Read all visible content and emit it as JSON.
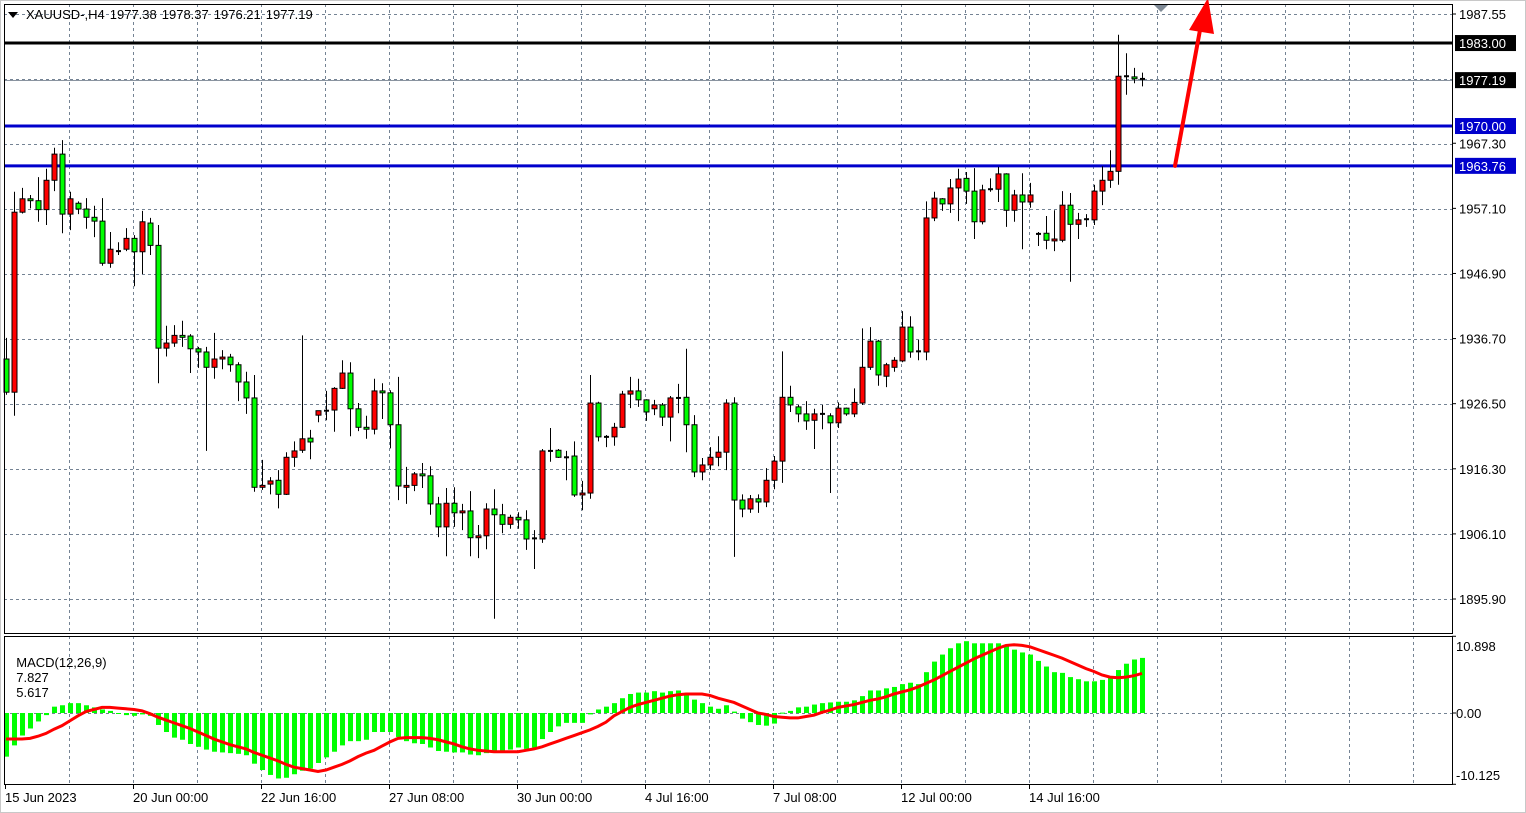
{
  "header": {
    "symbol": "XAUUSD-,H4",
    "open": "1977.38",
    "high": "1978.37",
    "low": "1976.21",
    "close": "1977.19"
  },
  "macd_label": {
    "name": "MACD(12,26,9)",
    "main": "7.827",
    "signal": "5.617"
  },
  "colors": {
    "bull": "#ff0000",
    "bear": "#00ff00",
    "resistance": "#000000",
    "support": "#0000cc",
    "signal": "#ff0000",
    "histogram": "#00ff00",
    "arrow": "#ff0000",
    "grid": "#748394"
  },
  "chart_data": [
    {
      "type": "candlestick",
      "title": "XAUUSD-,H4",
      "timeframe": "H4",
      "ylim": [
        1892.0,
        1989.3
      ],
      "grid": true,
      "price_ticks": [
        "1987.55",
        "1967.30",
        "1957.10",
        "1946.90",
        "1936.70",
        "1926.50",
        "1916.30",
        "1906.10",
        "1895.90"
      ],
      "price_tick_values": [
        1987.55,
        1967.3,
        1957.1,
        1946.9,
        1936.7,
        1926.5,
        1916.3,
        1906.1,
        1895.9
      ],
      "date_labels": [
        "15 Jun 2023",
        "20 Jun 00:00",
        "22 Jun 16:00",
        "27 Jun 08:00",
        "30 Jun 00:00",
        "4 Jul 16:00",
        "7 Jul 08:00",
        "12 Jul 00:00",
        "14 Jul 16:00"
      ],
      "date_label_bar_index": [
        0,
        16,
        32,
        48,
        64,
        80,
        96,
        112,
        128
      ],
      "horizontal_levels": [
        {
          "price": 1983.0,
          "label": "1983.00",
          "color": "#000000"
        },
        {
          "price": 1970.0,
          "label": "1970.00",
          "color": "#0000cc"
        },
        {
          "price": 1963.76,
          "label": "1963.76",
          "color": "#0000cc"
        }
      ],
      "current_price": {
        "price": 1977.19,
        "label": "1977.19"
      },
      "arrow": {
        "direction": "up",
        "from_price": 1963.76,
        "to_price": 1989.3,
        "color": "#ff0000"
      },
      "ohlc": [
        [
          1933.5,
          1936.8,
          1927.9,
          1928.3
        ],
        [
          1928.3,
          1959.7,
          1924.6,
          1956.5
        ],
        [
          1956.5,
          1960.3,
          1956.3,
          1958.6
        ],
        [
          1958.6,
          1959.2,
          1957.1,
          1958.3
        ],
        [
          1958.3,
          1962.0,
          1955.0,
          1956.9
        ],
        [
          1956.9,
          1963.3,
          1954.5,
          1961.5
        ],
        [
          1961.5,
          1966.6,
          1959.8,
          1965.6
        ],
        [
          1965.6,
          1967.8,
          1953.2,
          1956.2
        ],
        [
          1956.2,
          1959.7,
          1953.7,
          1958.6
        ],
        [
          1957.9,
          1958.2,
          1956.2,
          1957.0
        ],
        [
          1957.0,
          1958.7,
          1953.9,
          1955.7
        ],
        [
          1955.7,
          1957.5,
          1952.6,
          1955.1
        ],
        [
          1955.1,
          1958.7,
          1948.1,
          1948.5
        ],
        [
          1948.5,
          1953.4,
          1947.8,
          1950.7
        ],
        [
          1950.4,
          1951.8,
          1949.8,
          1950.3
        ],
        [
          1950.7,
          1954.0,
          1950.4,
          1952.4
        ],
        [
          1952.4,
          1952.9,
          1944.9,
          1950.3
        ],
        [
          1950.3,
          1956.7,
          1946.8,
          1955.0
        ],
        [
          1954.8,
          1955.6,
          1949.8,
          1951.3
        ],
        [
          1951.3,
          1954.5,
          1929.7,
          1935.2
        ],
        [
          1935.2,
          1938.7,
          1933.9,
          1936.0
        ],
        [
          1936.0,
          1938.8,
          1935.4,
          1937.2
        ],
        [
          1937.2,
          1939.5,
          1935.4,
          1936.9
        ],
        [
          1937.1,
          1937.4,
          1931.3,
          1935.1
        ],
        [
          1935.1,
          1935.4,
          1932.1,
          1934.6
        ],
        [
          1934.6,
          1935.4,
          1919.1,
          1932.2
        ],
        [
          1932.2,
          1937.6,
          1930.4,
          1933.5
        ],
        [
          1933.5,
          1934.9,
          1931.9,
          1933.8
        ],
        [
          1933.8,
          1934.3,
          1931.5,
          1932.6
        ],
        [
          1932.6,
          1933.0,
          1926.9,
          1929.9
        ],
        [
          1929.9,
          1931.5,
          1924.9,
          1927.4
        ],
        [
          1927.4,
          1931.0,
          1912.7,
          1913.4
        ],
        [
          1913.4,
          1917.7,
          1913.0,
          1913.7
        ],
        [
          1913.9,
          1915.0,
          1912.3,
          1914.4
        ],
        [
          1914.5,
          1916.1,
          1910.1,
          1912.3
        ],
        [
          1912.3,
          1918.9,
          1912.2,
          1918.1
        ],
        [
          1918.1,
          1920.6,
          1916.6,
          1919.1
        ],
        [
          1919.2,
          1937.2,
          1918.8,
          1921.0
        ],
        [
          1921.1,
          1922.4,
          1917.8,
          1920.5
        ],
        [
          1924.7,
          1925.4,
          1923.6,
          1925.4
        ],
        [
          1925.4,
          1928.5,
          1923.9,
          1925.3
        ],
        [
          1925.5,
          1929.1,
          1922.1,
          1928.9
        ],
        [
          1928.9,
          1933.3,
          1928.8,
          1931.3
        ],
        [
          1931.3,
          1933.0,
          1921.4,
          1925.7
        ],
        [
          1925.7,
          1926.6,
          1922.2,
          1922.8
        ],
        [
          1922.8,
          1924.6,
          1921.0,
          1922.5
        ],
        [
          1922.5,
          1930.4,
          1921.7,
          1928.5
        ],
        [
          1928.5,
          1929.7,
          1924.1,
          1928.2
        ],
        [
          1928.2,
          1928.6,
          1919.5,
          1923.2
        ],
        [
          1923.2,
          1930.7,
          1911.4,
          1913.6
        ],
        [
          1913.4,
          1916.6,
          1910.8,
          1913.7
        ],
        [
          1913.7,
          1915.8,
          1912.8,
          1915.5
        ],
        [
          1915.5,
          1917.2,
          1913.3,
          1915.2
        ],
        [
          1915.2,
          1916.7,
          1909.1,
          1910.8
        ],
        [
          1910.8,
          1911.9,
          1905.6,
          1907.2
        ],
        [
          1907.2,
          1913.3,
          1902.6,
          1910.9
        ],
        [
          1910.9,
          1913.4,
          1907.2,
          1909.4
        ],
        [
          1909.4,
          1910.8,
          1906.7,
          1909.7
        ],
        [
          1909.7,
          1912.8,
          1902.6,
          1905.5
        ],
        [
          1905.5,
          1907.5,
          1902.3,
          1905.8
        ],
        [
          1905.8,
          1910.9,
          1903.7,
          1910.0
        ],
        [
          1910.0,
          1913.1,
          1892.8,
          1909.1
        ],
        [
          1909.1,
          1910.8,
          1906.2,
          1907.6
        ],
        [
          1907.6,
          1909.1,
          1906.9,
          1908.7
        ],
        [
          1908.7,
          1909.5,
          1906.9,
          1908.3
        ],
        [
          1908.3,
          1909.8,
          1903.6,
          1905.3
        ],
        [
          1905.3,
          1906.7,
          1900.6,
          1905.4
        ],
        [
          1905.3,
          1919.4,
          1904.7,
          1919.1
        ],
        [
          1919.1,
          1922.7,
          1917.4,
          1919.1
        ],
        [
          1919.2,
          1919.4,
          1918.0,
          1918.1
        ],
        [
          1918.1,
          1919.1,
          1914.5,
          1918.0
        ],
        [
          1918.3,
          1920.6,
          1911.9,
          1912.2
        ],
        [
          1912.2,
          1914.4,
          1909.8,
          1912.5
        ],
        [
          1912.5,
          1931.0,
          1911.6,
          1926.6
        ],
        [
          1926.6,
          1926.8,
          1920.6,
          1921.3
        ],
        [
          1921.3,
          1921.6,
          1919.7,
          1921.3
        ],
        [
          1921.3,
          1923.5,
          1919.9,
          1922.8
        ],
        [
          1922.8,
          1928.5,
          1922.7,
          1928.0
        ],
        [
          1928.0,
          1930.7,
          1925.8,
          1928.5
        ],
        [
          1928.5,
          1930.4,
          1926.0,
          1927.1
        ],
        [
          1927.1,
          1927.2,
          1923.8,
          1925.2
        ],
        [
          1925.7,
          1927.1,
          1924.7,
          1926.3
        ],
        [
          1926.3,
          1926.6,
          1923.0,
          1924.4
        ],
        [
          1924.4,
          1927.7,
          1920.6,
          1927.4
        ],
        [
          1927.4,
          1929.6,
          1925.0,
          1927.3
        ],
        [
          1927.5,
          1935.1,
          1918.9,
          1923.2
        ],
        [
          1923.2,
          1924.7,
          1915.0,
          1915.8
        ],
        [
          1915.8,
          1918.0,
          1914.5,
          1916.9
        ],
        [
          1916.9,
          1919.7,
          1916.1,
          1918.1
        ],
        [
          1918.1,
          1921.4,
          1916.7,
          1918.9
        ],
        [
          1918.9,
          1927.2,
          1916.1,
          1926.6
        ],
        [
          1926.6,
          1927.5,
          1902.5,
          1911.4
        ],
        [
          1911.4,
          1912.3,
          1908.7,
          1910.0
        ],
        [
          1910.0,
          1912.2,
          1909.4,
          1911.6
        ],
        [
          1911.6,
          1912.3,
          1909.4,
          1911.1
        ],
        [
          1911.1,
          1916.4,
          1910.3,
          1914.5
        ],
        [
          1914.5,
          1918.3,
          1913.1,
          1917.5
        ],
        [
          1917.5,
          1934.7,
          1914.1,
          1927.5
        ],
        [
          1927.5,
          1929.3,
          1925.2,
          1926.3
        ],
        [
          1926.0,
          1926.3,
          1923.6,
          1924.9
        ],
        [
          1924.9,
          1926.9,
          1922.4,
          1923.8
        ],
        [
          1923.9,
          1925.7,
          1919.4,
          1924.9
        ],
        [
          1924.9,
          1926.3,
          1922.5,
          1924.7
        ],
        [
          1924.6,
          1925.0,
          1912.5,
          1923.5
        ],
        [
          1923.5,
          1926.7,
          1922.7,
          1925.8
        ],
        [
          1925.8,
          1925.9,
          1924.6,
          1924.9
        ],
        [
          1924.9,
          1928.9,
          1924.4,
          1926.7
        ],
        [
          1926.6,
          1938.3,
          1926.3,
          1932.2
        ],
        [
          1932.2,
          1938.5,
          1931.8,
          1936.3
        ],
        [
          1936.3,
          1936.5,
          1929.3,
          1931.0
        ],
        [
          1930.8,
          1932.9,
          1929.1,
          1932.6
        ],
        [
          1932.2,
          1933.8,
          1931.5,
          1933.3
        ],
        [
          1933.2,
          1941.0,
          1933.0,
          1938.5
        ],
        [
          1938.5,
          1940.2,
          1933.7,
          1934.6
        ],
        [
          1934.6,
          1936.5,
          1933.3,
          1934.7
        ],
        [
          1934.6,
          1958.2,
          1933.3,
          1955.6
        ],
        [
          1955.6,
          1959.7,
          1955.1,
          1958.7
        ],
        [
          1958.6,
          1958.7,
          1956.7,
          1957.8
        ],
        [
          1957.8,
          1961.7,
          1956.4,
          1960.3
        ],
        [
          1960.3,
          1963.3,
          1955.1,
          1961.7
        ],
        [
          1961.8,
          1962.8,
          1957.8,
          1959.8
        ],
        [
          1959.8,
          1963.4,
          1952.3,
          1955.0
        ],
        [
          1955.0,
          1960.8,
          1954.6,
          1960.0
        ],
        [
          1960.0,
          1961.8,
          1959.7,
          1960.1
        ],
        [
          1960.1,
          1963.6,
          1958.1,
          1962.5
        ],
        [
          1962.5,
          1962.6,
          1954.2,
          1956.8
        ],
        [
          1956.8,
          1960.0,
          1955.0,
          1959.2
        ],
        [
          1959.2,
          1962.6,
          1950.7,
          1958.1
        ],
        [
          1958.1,
          1961.1,
          1957.2,
          1959.2
        ],
        [
          1953.1,
          1953.4,
          1951.2,
          1953.0
        ],
        [
          1953.2,
          1955.9,
          1950.7,
          1952.1
        ],
        [
          1952.0,
          1956.8,
          1950.4,
          1952.3
        ],
        [
          1952.1,
          1959.8,
          1951.8,
          1957.6
        ],
        [
          1957.6,
          1959.5,
          1945.6,
          1954.6
        ],
        [
          1954.6,
          1956.4,
          1952.3,
          1955.3
        ],
        [
          1955.3,
          1956.2,
          1954.2,
          1955.4
        ],
        [
          1955.3,
          1960.8,
          1954.5,
          1959.8
        ],
        [
          1959.8,
          1963.7,
          1957.6,
          1961.5
        ],
        [
          1961.5,
          1966.2,
          1960.3,
          1962.9
        ],
        [
          1962.9,
          1984.3,
          1960.8,
          1977.8
        ],
        [
          1977.8,
          1981.4,
          1974.9,
          1977.7
        ],
        [
          1977.7,
          1979.1,
          1976.7,
          1977.4
        ],
        [
          1977.38,
          1978.37,
          1976.21,
          1977.19
        ]
      ]
    },
    {
      "type": "bar+line",
      "title": "MACD(12,26,9)",
      "ylim": [
        -10.125,
        10.898
      ],
      "y_ticks": [
        "10.898",
        "0.00",
        "-10.125"
      ],
      "y_tick_values": [
        10.898,
        0,
        -10.125
      ],
      "histogram": [
        -6.2,
        -4.6,
        -3.2,
        -2.2,
        -1.2,
        -0.3,
        0.9,
        1.1,
        1.4,
        1.4,
        1.1,
        0.8,
        0.5,
        0.3,
        -0.1,
        -0.3,
        -0.4,
        -0.2,
        -0.4,
        -1.7,
        -2.7,
        -3.5,
        -3.8,
        -4.4,
        -4.8,
        -5.2,
        -5.5,
        -5.6,
        -5.7,
        -5.8,
        -6.0,
        -7.2,
        -8.1,
        -8.8,
        -9.3,
        -9.2,
        -8.7,
        -8.2,
        -7.9,
        -7.1,
        -6.3,
        -5.5,
        -4.6,
        -4.0,
        -4.0,
        -3.8,
        -2.7,
        -2.7,
        -2.7,
        -3.4,
        -4.0,
        -4.3,
        -4.4,
        -4.9,
        -5.4,
        -5.5,
        -5.6,
        -5.6,
        -5.9,
        -6.0,
        -5.7,
        -5.6,
        -5.5,
        -5.2,
        -4.9,
        -5.1,
        -4.9,
        -3.7,
        -2.7,
        -1.9,
        -1.4,
        -1.4,
        -1.4,
        -0.2,
        0.5,
        0.9,
        1.4,
        2.1,
        2.7,
        2.9,
        2.9,
        3.1,
        2.9,
        3.1,
        3.2,
        2.7,
        1.9,
        1.4,
        0.9,
        0.6,
        1.1,
        0.2,
        -0.8,
        -1.3,
        -1.7,
        -1.8,
        -1.5,
        0.05,
        0.3,
        0.8,
        0.9,
        1.2,
        1.4,
        1.5,
        1.6,
        1.6,
        1.8,
        2.4,
        3.2,
        3.2,
        3.5,
        3.7,
        4.1,
        4.3,
        4.1,
        5.8,
        7.3,
        8.3,
        9.2,
        9.9,
        10.2,
        9.9,
        9.9,
        9.9,
        9.9,
        9.5,
        9.0,
        8.6,
        8.3,
        7.4,
        6.6,
        5.8,
        5.7,
        5.1,
        4.8,
        4.5,
        4.5,
        4.7,
        5.0,
        6.1,
        7.0,
        7.6,
        7.827
      ],
      "signal": [
        -3.7,
        -3.7,
        -3.7,
        -3.6,
        -3.3,
        -2.9,
        -2.3,
        -1.8,
        -1.1,
        -0.4,
        0.2,
        0.5,
        0.8,
        0.8,
        0.7,
        0.6,
        0.5,
        0.3,
        -0.1,
        -0.6,
        -1.0,
        -1.4,
        -1.8,
        -2.2,
        -2.7,
        -3.2,
        -3.7,
        -4.1,
        -4.5,
        -4.8,
        -5.1,
        -5.6,
        -6.0,
        -6.4,
        -6.8,
        -7.3,
        -7.7,
        -7.9,
        -8.1,
        -8.3,
        -8.1,
        -7.7,
        -7.3,
        -6.8,
        -6.2,
        -5.7,
        -5.3,
        -4.7,
        -4.1,
        -3.6,
        -3.5,
        -3.5,
        -3.5,
        -3.6,
        -3.8,
        -4.1,
        -4.4,
        -4.8,
        -5.1,
        -5.3,
        -5.4,
        -5.5,
        -5.5,
        -5.5,
        -5.5,
        -5.3,
        -5.1,
        -4.8,
        -4.4,
        -4.0,
        -3.6,
        -3.2,
        -2.8,
        -2.4,
        -1.9,
        -1.3,
        -0.4,
        0.2,
        0.8,
        1.2,
        1.5,
        1.8,
        2.1,
        2.4,
        2.6,
        2.7,
        2.7,
        2.7,
        2.5,
        2.1,
        1.8,
        1.5,
        1.0,
        0.5,
        0.0,
        -0.2,
        -0.5,
        -0.6,
        -0.7,
        -0.7,
        -0.5,
        -0.3,
        0.1,
        0.4,
        0.8,
        1.0,
        1.2,
        1.5,
        1.8,
        2.0,
        2.3,
        2.7,
        3.0,
        3.3,
        3.7,
        4.2,
        4.7,
        5.3,
        5.9,
        6.5,
        7.1,
        7.7,
        8.2,
        8.7,
        9.2,
        9.6,
        9.7,
        9.6,
        9.4,
        9.0,
        8.6,
        8.2,
        7.8,
        7.3,
        6.8,
        6.3,
        5.9,
        5.4,
        5.1,
        5.0,
        5.1,
        5.3,
        5.617
      ]
    }
  ]
}
